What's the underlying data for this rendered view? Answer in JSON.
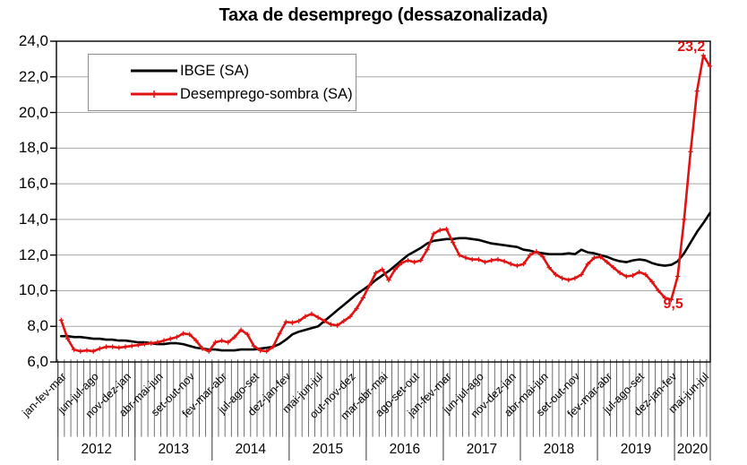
{
  "title": "Taxa de desemprego (dessazonalizada)",
  "chart_data": {
    "type": "line",
    "title": "Taxa de desemprego (dessazonalizada)",
    "xlabel": "",
    "ylabel": "",
    "ylim": [
      6,
      24
    ],
    "ytick_step": 2,
    "y_tick_labels": [
      "24,0",
      "22,0",
      "20,0",
      "18,0",
      "16,0",
      "14,0",
      "12,0",
      "10,0",
      "8,0",
      "6,0"
    ],
    "x_tick_labels": [
      "jan-fev-mar",
      "jun-jul-ago",
      "nov-dez-jan",
      "abr-mai-jun",
      "set-out-nov",
      "fev-mar-abr",
      "jul-ago-set",
      "dez-jan-fev",
      "mai-jun-jul",
      "out-nov-dez",
      "mar-abr-mai",
      "ago-set-out",
      "jan-fev-mar",
      "jun-jul-ago",
      "nov-dez-jan",
      "abr-mai-jun",
      "set-out-nov",
      "fev-mar-abr",
      "jul-ago-set",
      "dez-jan-fev",
      "mai-jun-jul"
    ],
    "x_tick_interval_months": 5,
    "x_start": "jan-fev-mar 2012",
    "x_end": "jun-jul-ago 2020",
    "years": [
      "2012",
      "2013",
      "2014",
      "2015",
      "2016",
      "2017",
      "2018",
      "2019",
      "2020"
    ],
    "grid": "horizontal",
    "gridline_color": "#a8a8a8",
    "axis_color": "#000000",
    "legend_position": "top-left-inside",
    "series": [
      {
        "name": "IBGE (SA)",
        "color": "#000000",
        "marker": "none",
        "values": [
          7.45,
          7.45,
          7.4,
          7.4,
          7.35,
          7.3,
          7.3,
          7.25,
          7.25,
          7.2,
          7.2,
          7.15,
          7.1,
          7.1,
          7.05,
          7.0,
          7.0,
          7.05,
          7.05,
          7.0,
          6.9,
          6.8,
          6.75,
          6.7,
          6.7,
          6.65,
          6.65,
          6.65,
          6.7,
          6.7,
          6.7,
          6.75,
          6.8,
          6.85,
          7.0,
          7.25,
          7.55,
          7.7,
          7.8,
          7.9,
          8.0,
          8.3,
          8.6,
          8.9,
          9.2,
          9.5,
          9.8,
          10.05,
          10.3,
          10.6,
          10.85,
          11.1,
          11.4,
          11.7,
          12.0,
          12.2,
          12.4,
          12.65,
          12.8,
          12.85,
          12.9,
          12.9,
          12.95,
          12.95,
          12.9,
          12.85,
          12.75,
          12.65,
          12.6,
          12.55,
          12.5,
          12.45,
          12.3,
          12.25,
          12.15,
          12.1,
          12.05,
          12.05,
          12.05,
          12.1,
          12.05,
          12.3,
          12.15,
          12.1,
          12.0,
          11.9,
          11.75,
          11.65,
          11.6,
          11.7,
          11.75,
          11.7,
          11.55,
          11.45,
          11.4,
          11.45,
          11.65,
          12.1,
          12.7,
          13.3,
          13.8,
          14.35
        ]
      },
      {
        "name": "Desemprego-sombra (SA)",
        "color": "#e01212",
        "marker": "plus",
        "values": [
          8.35,
          7.3,
          6.7,
          6.6,
          6.65,
          6.6,
          6.75,
          6.85,
          6.85,
          6.8,
          6.85,
          6.9,
          6.95,
          7.0,
          7.05,
          7.1,
          7.2,
          7.3,
          7.4,
          7.6,
          7.55,
          7.2,
          6.75,
          6.6,
          7.1,
          7.2,
          7.1,
          7.4,
          7.8,
          7.55,
          6.9,
          6.65,
          6.6,
          6.85,
          7.6,
          8.25,
          8.2,
          8.3,
          8.55,
          8.7,
          8.5,
          8.3,
          8.1,
          8.05,
          8.3,
          8.55,
          9.0,
          9.6,
          10.3,
          11.0,
          11.2,
          10.6,
          11.2,
          11.55,
          11.7,
          11.6,
          11.7,
          12.3,
          13.2,
          13.4,
          13.45,
          12.7,
          12.0,
          11.85,
          11.75,
          11.75,
          11.6,
          11.7,
          11.75,
          11.65,
          11.5,
          11.4,
          11.5,
          12.0,
          12.2,
          11.9,
          11.3,
          10.9,
          10.7,
          10.6,
          10.7,
          10.9,
          11.5,
          11.85,
          11.9,
          11.6,
          11.3,
          11.0,
          10.8,
          10.85,
          11.05,
          10.9,
          10.5,
          10.0,
          9.6,
          9.5,
          10.8,
          14.0,
          17.8,
          21.2,
          23.2,
          22.6
        ]
      }
    ],
    "annotations": [
      {
        "text": "23,2",
        "series": 1,
        "index": 100,
        "value": 23.2,
        "placement": "above-left"
      },
      {
        "text": "9,5",
        "series": 1,
        "index": 95,
        "value": 9.5,
        "placement": "below-right"
      }
    ]
  }
}
